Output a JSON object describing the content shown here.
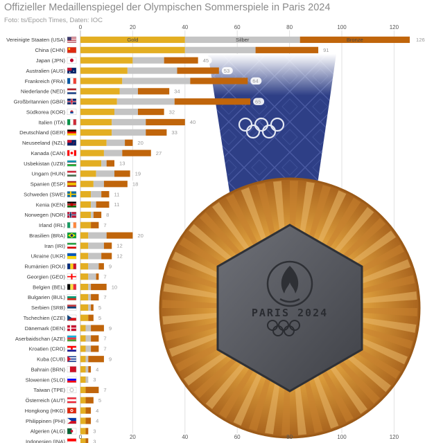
{
  "title": "Offizieller Medaillenspiegel der Olympischen Sommerspiele in Paris 2024",
  "credit": "Foto: ts/Epoch Times, Daten: IOC",
  "colors": {
    "gold": "#E3AE22",
    "silver": "#C4C4C4",
    "bronze": "#C0650B",
    "grid": "#E2E2E2",
    "ribbon": "#2E3F86"
  },
  "medal": {
    "text": "PARIS 2024",
    "rings_icon": "olympic-rings-icon",
    "flame_icon": "paris-flame-emblem-icon"
  },
  "chart_data": {
    "type": "bar",
    "orientation": "horizontal",
    "stacked": true,
    "categories": [
      "Vereinigte Staaten (USA)",
      "China (CHN)",
      "Japan (JPN)",
      "Australien (AUS)",
      "Frankreich (FRA)",
      "Niederlande (NED)",
      "Großbritannien (GBR)",
      "Südkorea (KOR)",
      "Italien (ITA)",
      "Deutschland (GER)",
      "Neuseeland (NZL)",
      "Kanada (CAN)",
      "Usbekistan (UZB)",
      "Ungarn (HUN)",
      "Spanien (ESP)",
      "Schweden (SWE)",
      "Kenia (KEN)",
      "Norwegen (NOR)",
      "Irland (IRL)",
      "Brasilien (BRA)",
      "Iran (IRI)",
      "Ukraine (UKR)",
      "Rumänien (ROU)",
      "Georgien (GEO)",
      "Belgien (BEL)",
      "Bulgarien (BUL)",
      "Serbien (SRB)",
      "Tschechien (CZE)",
      "Dänemark (DEN)",
      "Aserbaidschan (AZE)",
      "Kroatien (CRO)",
      "Kuba (CUB)",
      "Bahrain (BRN)",
      "Slowenien (SLO)",
      "Taiwan (TPE)",
      "Österreich (AUT)",
      "Hongkong (HKG)",
      "Philippinen (PHI)",
      "Algerien (ALG)",
      "Indonesien (INA)"
    ],
    "series": [
      {
        "name": "Gold",
        "values": [
          40,
          40,
          20,
          18,
          16,
          15,
          14,
          13,
          12,
          12,
          10,
          9,
          8,
          6,
          5,
          4,
          4,
          4,
          4,
          3,
          3,
          3,
          3,
          3,
          3,
          3,
          3,
          3,
          2,
          2,
          2,
          2,
          2,
          2,
          2,
          2,
          2,
          2,
          2,
          2
        ]
      },
      {
        "name": "Silber",
        "values": [
          44,
          27,
          12,
          19,
          26,
          7,
          22,
          9,
          13,
          13,
          7,
          7,
          2,
          7,
          4,
          4,
          2,
          1,
          0,
          7,
          6,
          5,
          4,
          3,
          1,
          1,
          1,
          0,
          2,
          2,
          2,
          1,
          1,
          1,
          0,
          0,
          0,
          0,
          0,
          0
        ]
      },
      {
        "name": "Bronze",
        "values": [
          42,
          24,
          13,
          16,
          22,
          12,
          29,
          10,
          15,
          8,
          3,
          11,
          3,
          6,
          9,
          3,
          5,
          3,
          3,
          10,
          3,
          4,
          2,
          1,
          6,
          3,
          1,
          2,
          5,
          3,
          3,
          6,
          1,
          0,
          5,
          3,
          2,
          2,
          1,
          1
        ]
      }
    ],
    "totals": [
      126,
      91,
      45,
      53,
      64,
      34,
      65,
      32,
      40,
      33,
      20,
      27,
      13,
      19,
      18,
      11,
      11,
      8,
      7,
      20,
      12,
      12,
      9,
      7,
      10,
      7,
      5,
      5,
      9,
      7,
      7,
      9,
      4,
      3,
      7,
      5,
      4,
      4,
      3,
      3
    ],
    "flags": [
      "flag-usa-icon",
      "flag-chn-icon",
      "flag-jpn-icon",
      "flag-aus-icon",
      "flag-fra-icon",
      "flag-ned-icon",
      "flag-gbr-icon",
      "flag-kor-icon",
      "flag-ita-icon",
      "flag-ger-icon",
      "flag-nzl-icon",
      "flag-can-icon",
      "flag-uzb-icon",
      "flag-hun-icon",
      "flag-esp-icon",
      "flag-swe-icon",
      "flag-ken-icon",
      "flag-nor-icon",
      "flag-irl-icon",
      "flag-bra-icon",
      "flag-iri-icon",
      "flag-ukr-icon",
      "flag-rou-icon",
      "flag-geo-icon",
      "flag-bel-icon",
      "flag-bul-icon",
      "flag-srb-icon",
      "flag-cze-icon",
      "flag-den-icon",
      "flag-aze-icon",
      "flag-cro-icon",
      "flag-cub-icon",
      "flag-brn-icon",
      "flag-slo-icon",
      "flag-tpe-icon",
      "flag-aut-icon",
      "flag-hkg-icon",
      "flag-phi-icon",
      "flag-alg-icon",
      "flag-ina-icon"
    ],
    "xticks": [
      0,
      20,
      40,
      60,
      80,
      100,
      120
    ],
    "xlim": [
      0,
      130
    ],
    "grid": true,
    "legend": "inside-top-bar"
  }
}
